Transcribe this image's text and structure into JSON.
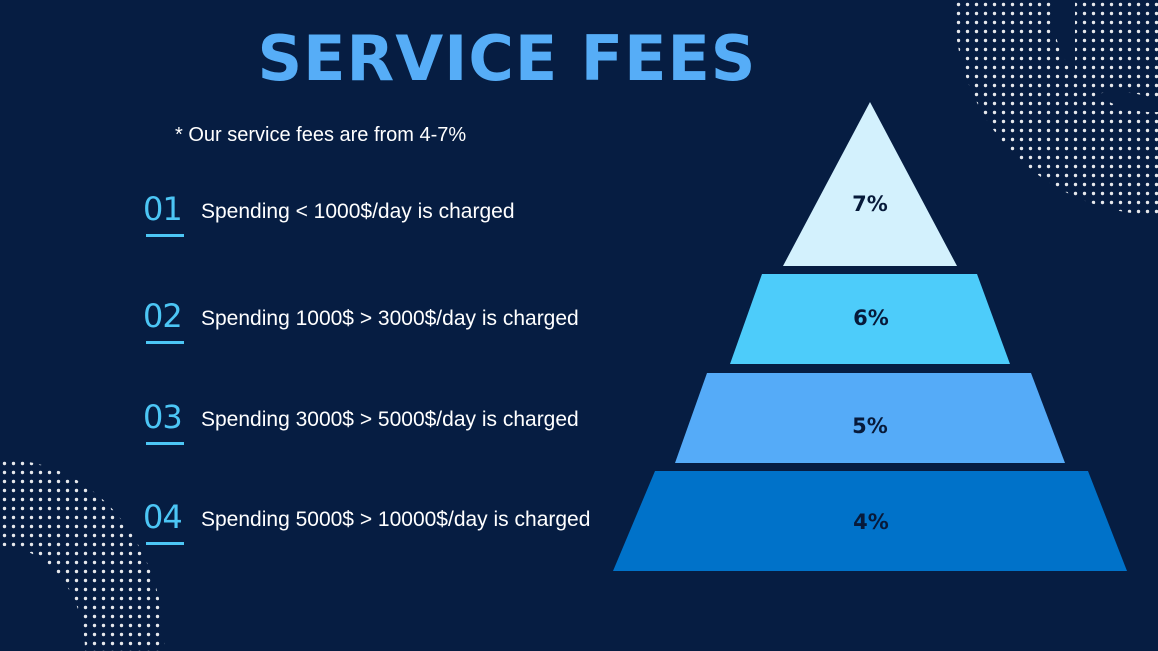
{
  "title": "SERVICE FEES",
  "subtitle": "* Our service fees are from 4-7%",
  "tiers": [
    {
      "number": "01",
      "text": "Spending < 1000$/day is charged"
    },
    {
      "number": "02",
      "text": "Spending 1000$ > 3000$/day is charged"
    },
    {
      "number": "03",
      "text": "Spending 3000$ > 5000$/day is charged"
    },
    {
      "number": "04",
      "text": "Spending 5000$ > 10000$/day is charged"
    }
  ],
  "pyramid": [
    {
      "label": "7%",
      "color": "#d3f1fd"
    },
    {
      "label": "6%",
      "color": "#4dccfa"
    },
    {
      "label": "5%",
      "color": "#55abf8"
    },
    {
      "label": "4%",
      "color": "#0072c9"
    }
  ],
  "colors": {
    "background": "#061d42",
    "title": "#56adf7",
    "accent": "#4cc6f5",
    "dots": "#ffffff"
  }
}
